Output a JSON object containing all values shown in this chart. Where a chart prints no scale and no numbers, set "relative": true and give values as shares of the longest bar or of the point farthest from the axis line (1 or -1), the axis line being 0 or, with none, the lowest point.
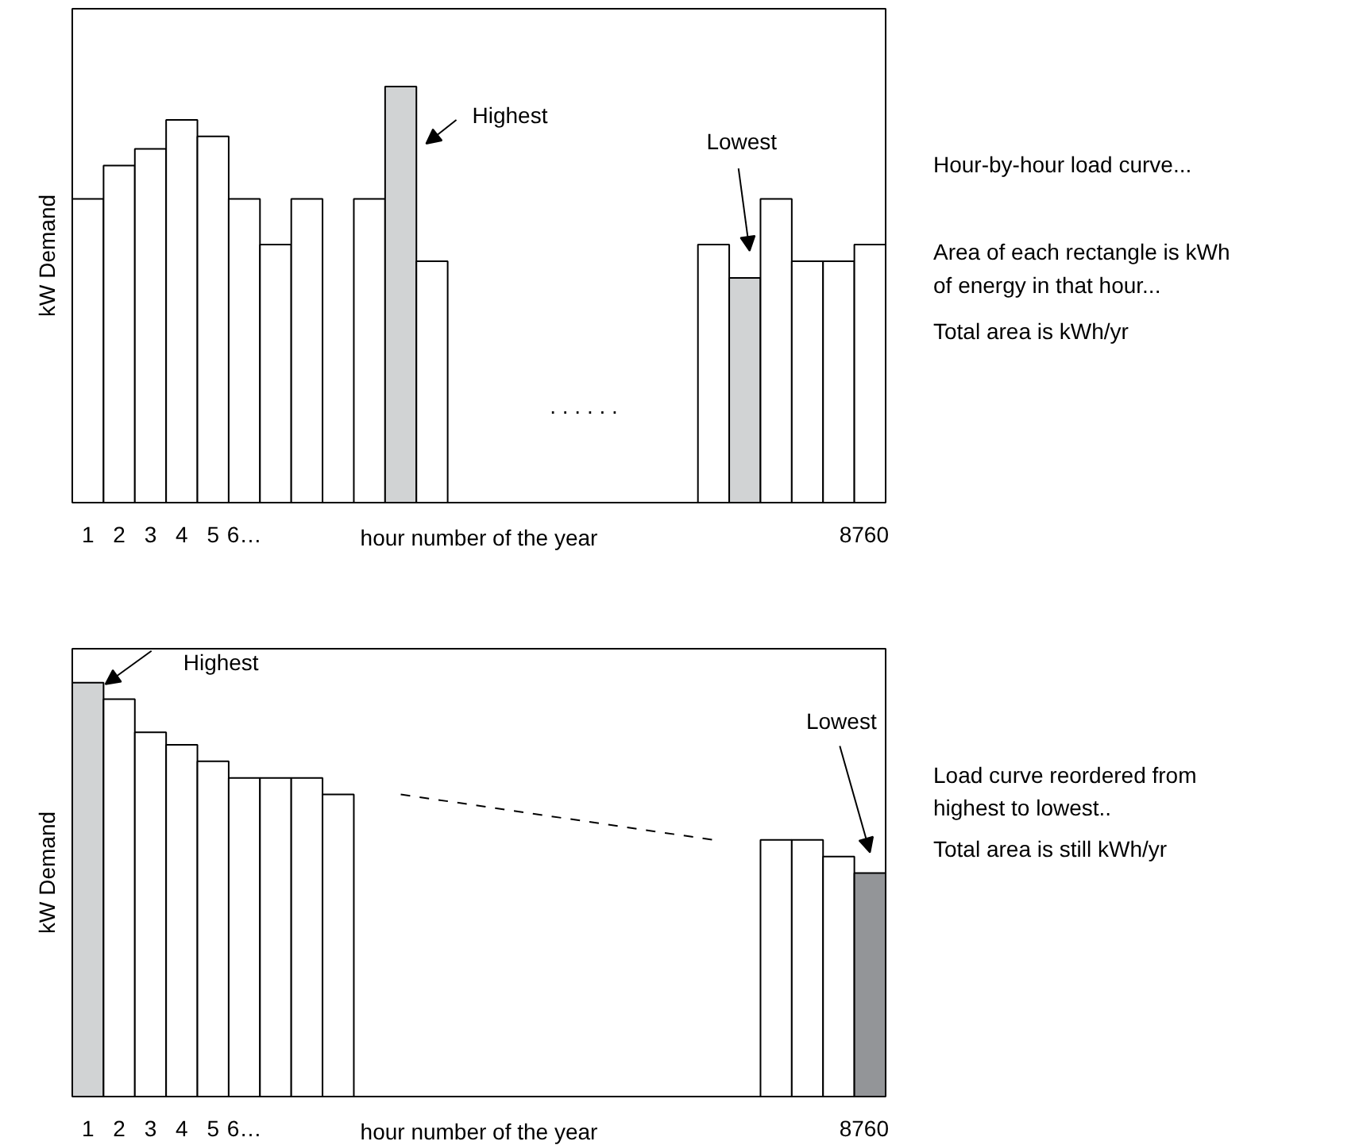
{
  "chart_data": [
    {
      "type": "bar",
      "relative": true,
      "ylabel": "kW Demand",
      "xlabel": "hour number of the year",
      "categories": [
        "1",
        "2",
        "3",
        "4",
        "5",
        "6…",
        null,
        null,
        null,
        null,
        null,
        null,
        null,
        null,
        null,
        null,
        null,
        null,
        null,
        null,
        null,
        null,
        null,
        null,
        null,
        "8760"
      ],
      "grid": false,
      "series": [
        {
          "values": [
            0.73,
            0.81,
            0.85,
            0.92,
            0.88,
            0.73,
            0.62,
            0.73,
            null,
            0.73,
            1,
            0.58,
            null,
            null,
            null,
            null,
            null,
            null,
            null,
            null,
            0.62,
            0.54,
            0.73,
            0.58,
            0.58,
            0.62
          ],
          "colors": [
            "#ffffff",
            "#ffffff",
            "#ffffff",
            "#ffffff",
            "#ffffff",
            "#ffffff",
            "#ffffff",
            "#ffffff",
            "#ffffff",
            "#ffffff",
            "#d1d3d4",
            "#ffffff",
            "#ffffff",
            "#ffffff",
            "#ffffff",
            "#ffffff",
            "#ffffff",
            "#ffffff",
            "#ffffff",
            "#ffffff",
            "#ffffff",
            "#d1d3d4",
            "#ffffff",
            "#ffffff",
            "#ffffff",
            "#ffffff"
          ]
        }
      ],
      "annotations": [
        "Highest",
        "Lowest",
        ". . . . . .",
        "Hour-by-hour load curve...",
        "Area of each rectangle is kWh of energy in that hour...",
        "Total area is kWh/yr"
      ]
    },
    {
      "type": "bar",
      "relative": true,
      "ylabel": "kW Demand",
      "xlabel": "hour number of the year",
      "categories": [
        "1",
        "2",
        "3",
        "4",
        "5",
        "6…",
        null,
        null,
        null,
        null,
        null,
        null,
        null,
        null,
        null,
        null,
        null,
        null,
        null,
        null,
        null,
        null,
        null,
        null,
        null,
        "8760"
      ],
      "grid": false,
      "series": [
        {
          "values": [
            1,
            0.96,
            0.88,
            0.85,
            0.81,
            0.77,
            0.77,
            0.77,
            0.73,
            null,
            null,
            null,
            null,
            null,
            null,
            null,
            null,
            null,
            null,
            null,
            null,
            null,
            0.62,
            0.62,
            0.58,
            0.54
          ],
          "colors": [
            "#d1d3d4",
            "#ffffff",
            "#ffffff",
            "#ffffff",
            "#ffffff",
            "#ffffff",
            "#ffffff",
            "#ffffff",
            "#ffffff",
            "#ffffff",
            "#ffffff",
            "#ffffff",
            "#ffffff",
            "#ffffff",
            "#ffffff",
            "#ffffff",
            "#ffffff",
            "#ffffff",
            "#ffffff",
            "#ffffff",
            "#ffffff",
            "#ffffff",
            "#ffffff",
            "#ffffff",
            "#ffffff",
            "#939598"
          ]
        },
        {
          "type": "line",
          "values": [
            null,
            null,
            null,
            null,
            null,
            null,
            null,
            null,
            null,
            null,
            0.73,
            null,
            null,
            null,
            null,
            null,
            null,
            null,
            null,
            null,
            0.62,
            null,
            null,
            null,
            null,
            null
          ],
          "color": "#000000",
          "line_style": "dashed"
        }
      ],
      "annotations": [
        "Highest",
        "Lowest",
        "Load curve reordered from highest to lowest..",
        "Total area is still kWh/yr"
      ]
    }
  ]
}
